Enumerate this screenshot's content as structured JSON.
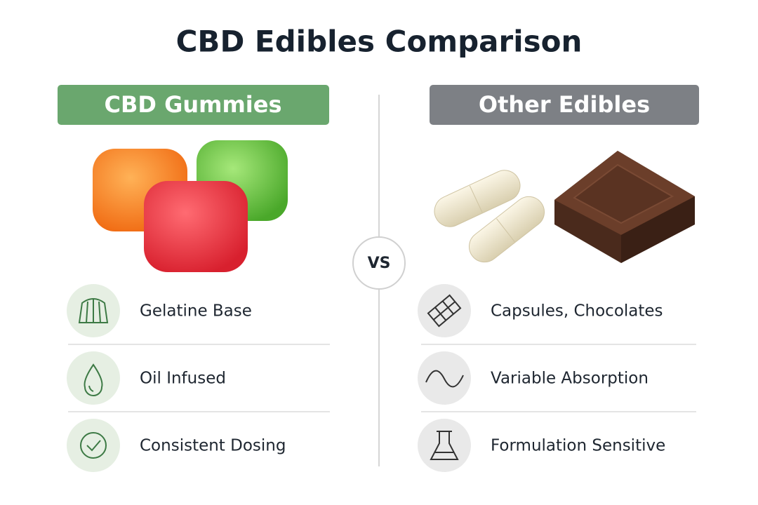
{
  "title": "CBD Edibles Comparison",
  "vs": "VS",
  "left": {
    "heading": "CBD Gummies",
    "features": [
      "Gelatine Base",
      "Oil Infused",
      "Consistent Dosing"
    ]
  },
  "right": {
    "heading": "Other Edibles",
    "features": [
      "Capsules, Chocolates",
      "Variable Absorption",
      "Formulation Sensitive"
    ]
  }
}
